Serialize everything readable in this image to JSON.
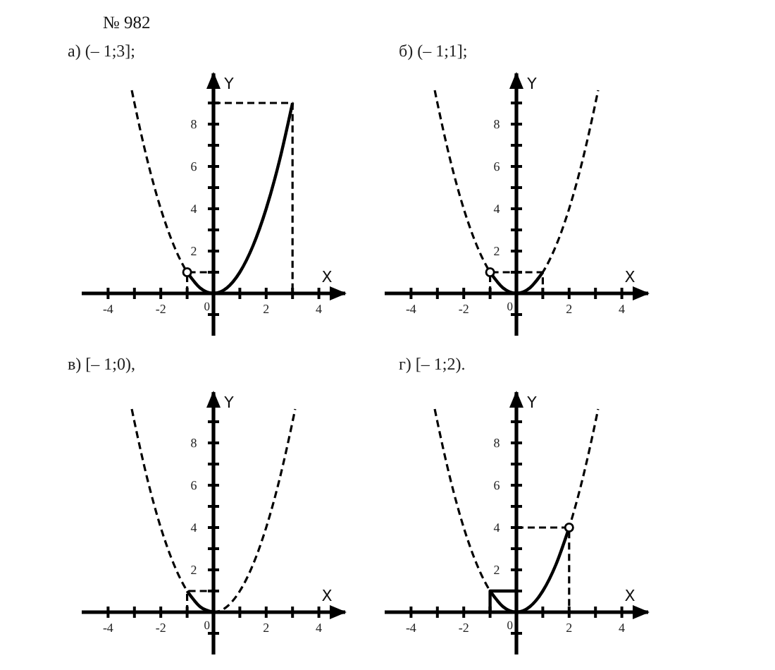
{
  "chart_data": [
    {
      "type": "line",
      "title": "а) (– 1;3];",
      "annotations": [
        "№ 982"
      ],
      "xlabel": "X",
      "ylabel": "Y",
      "xlim": [
        -5,
        5
      ],
      "ylim": [
        -2,
        10.4
      ],
      "xticks": [
        -4,
        {
          "value": -3,
          "label": null
        },
        -2,
        {
          "value": -1,
          "label": null
        },
        0,
        {
          "value": 1,
          "label": null
        },
        2,
        {
          "value": 3,
          "label": null
        },
        4
      ],
      "yticks": [
        {
          "value": -1,
          "label": null
        },
        {
          "value": 1,
          "label": null
        },
        2,
        {
          "value": 3,
          "label": null
        },
        4,
        {
          "value": 5,
          "label": null
        },
        6,
        {
          "value": 7,
          "label": null
        },
        8,
        {
          "value": 9,
          "label": null
        }
      ],
      "series": [
        {
          "color": "#000000",
          "line_style": "dashed",
          "x": [
            -3.1,
            -3,
            -2.5,
            -2,
            -1.5,
            -1,
            -0.5,
            0,
            0.5,
            1,
            1.5,
            2,
            2.5,
            3
          ],
          "values": [
            9.6,
            9,
            6.25,
            4,
            2.25,
            1,
            0.25,
            0,
            0.25,
            1,
            2.25,
            4,
            6.25,
            9
          ]
        },
        {
          "color": "#000000",
          "line_style": "solid",
          "x": [
            -1,
            -0.5,
            0,
            0.5,
            1,
            1.5,
            2,
            2.5,
            3
          ],
          "values": [
            1,
            0.25,
            0,
            0.25,
            1,
            2.25,
            4,
            6.25,
            9
          ]
        },
        {
          "color": "#000000",
          "line_style": "dashed",
          "x": [
            -1,
            -1,
            0
          ],
          "values": [
            0,
            1,
            1
          ]
        },
        {
          "color": "#000000",
          "line_style": "dashed",
          "x": [
            0,
            3,
            3
          ],
          "values": [
            9,
            9,
            0
          ]
        },
        {
          "type": "scatter",
          "marker": "circle",
          "color": "#000000",
          "x": [
            -1
          ],
          "values": [
            1
          ]
        }
      ]
    },
    {
      "type": "line",
      "title": "б) (– 1;1];",
      "xlabel": "X",
      "ylabel": "Y",
      "xlim": [
        -5,
        5
      ],
      "ylim": [
        -2,
        10.4
      ],
      "xticks": [
        -4,
        {
          "value": -3,
          "label": null
        },
        -2,
        {
          "value": -1,
          "label": null
        },
        0,
        {
          "value": 1,
          "label": null
        },
        2,
        {
          "value": 3,
          "label": null
        },
        4
      ],
      "yticks": [
        {
          "value": -1,
          "label": null
        },
        {
          "value": 1,
          "label": null
        },
        2,
        {
          "value": 3,
          "label": null
        },
        4,
        {
          "value": 5,
          "label": null
        },
        6,
        {
          "value": 7,
          "label": null
        },
        8,
        {
          "value": 9,
          "label": null
        }
      ],
      "series": [
        {
          "color": "#000000",
          "line_style": "dashed",
          "x": [
            -3.1,
            -3,
            -2.5,
            -2,
            -1.5,
            -1,
            -0.5,
            0,
            0.5,
            1,
            1.5,
            2,
            2.5,
            3,
            3.1
          ],
          "values": [
            9.6,
            9,
            6.25,
            4,
            2.25,
            1,
            0.25,
            0,
            0.25,
            1,
            2.25,
            4,
            6.25,
            9,
            9.6
          ]
        },
        {
          "color": "#000000",
          "line_style": "solid",
          "x": [
            -1,
            -0.5,
            0,
            0.5,
            1
          ],
          "values": [
            1,
            0.25,
            0,
            0.25,
            1
          ]
        },
        {
          "color": "#000000",
          "line_style": "dashed",
          "x": [
            -1,
            -1,
            1,
            1
          ],
          "values": [
            0,
            1,
            1,
            0
          ]
        },
        {
          "type": "scatter",
          "marker": "circle",
          "color": "#000000",
          "x": [
            -1
          ],
          "values": [
            1
          ]
        }
      ]
    },
    {
      "type": "line",
      "title": "в) [– 1;0),",
      "xlabel": "X",
      "ylabel": "Y",
      "xlim": [
        -5,
        5
      ],
      "ylim": [
        -2,
        10.4
      ],
      "xticks": [
        -4,
        {
          "value": -3,
          "label": null
        },
        -2,
        {
          "value": -1,
          "label": null
        },
        0,
        {
          "value": 1,
          "label": null
        },
        2,
        {
          "value": 3,
          "label": null
        },
        4
      ],
      "yticks": [
        {
          "value": -1,
          "label": null
        },
        {
          "value": 1,
          "label": null
        },
        2,
        {
          "value": 3,
          "label": null
        },
        4,
        {
          "value": 5,
          "label": null
        },
        6,
        {
          "value": 7,
          "label": null
        },
        8,
        {
          "value": 9,
          "label": null
        }
      ],
      "series": [
        {
          "color": "#000000",
          "line_style": "dashed",
          "x": [
            -3.1,
            -3,
            -2.5,
            -2,
            -1.5,
            -1,
            -0.5,
            0,
            0.5,
            1,
            1.5,
            2,
            2.5,
            3,
            3.1
          ],
          "values": [
            9.6,
            9,
            6.25,
            4,
            2.25,
            1,
            0.25,
            0,
            0.25,
            1,
            2.25,
            4,
            6.25,
            9,
            9.6
          ]
        },
        {
          "color": "#000000",
          "line_style": "solid",
          "x": [
            -1,
            -0.5,
            0
          ],
          "values": [
            1,
            0.25,
            0
          ]
        },
        {
          "color": "#000000",
          "line_style": "dashed",
          "x": [
            -1,
            -1,
            0
          ],
          "values": [
            0,
            1,
            1
          ]
        }
      ]
    },
    {
      "type": "line",
      "title": "г) [– 1;2).",
      "xlabel": "X",
      "ylabel": "Y",
      "xlim": [
        -5,
        5
      ],
      "ylim": [
        -2,
        10.4
      ],
      "xticks": [
        -4,
        {
          "value": -3,
          "label": null
        },
        -2,
        {
          "value": -1,
          "label": null
        },
        0,
        {
          "value": 1,
          "label": null
        },
        2,
        {
          "value": 3,
          "label": null
        },
        4
      ],
      "yticks": [
        {
          "value": -1,
          "label": null
        },
        {
          "value": 1,
          "label": null
        },
        2,
        {
          "value": 3,
          "label": null
        },
        4,
        {
          "value": 5,
          "label": null
        },
        6,
        {
          "value": 7,
          "label": null
        },
        8,
        {
          "value": 9,
          "label": null
        }
      ],
      "series": [
        {
          "color": "#000000",
          "line_style": "dashed",
          "x": [
            -3.1,
            -3,
            -2.5,
            -2,
            -1.5,
            -1,
            -0.5,
            0,
            0.5,
            1,
            1.5,
            2,
            2.5,
            3,
            3.1
          ],
          "values": [
            9.6,
            9,
            6.25,
            4,
            2.25,
            1,
            0.25,
            0,
            0.25,
            1,
            2.25,
            4,
            6.25,
            9,
            9.6
          ]
        },
        {
          "color": "#000000",
          "line_style": "solid",
          "x": [
            -1,
            -0.5,
            0,
            0.5,
            1,
            1.5,
            2
          ],
          "values": [
            1,
            0.25,
            0,
            0.25,
            1,
            2.25,
            4
          ]
        },
        {
          "color": "#000000",
          "line_style": "solid",
          "x": [
            -1,
            -1,
            0
          ],
          "values": [
            0,
            1,
            1
          ]
        },
        {
          "color": "#000000",
          "line_style": "dashed",
          "x": [
            0,
            2,
            2
          ],
          "values": [
            4,
            4,
            0
          ]
        },
        {
          "type": "scatter",
          "marker": "circle",
          "color": "#000000",
          "x": [
            2
          ],
          "values": [
            4
          ]
        }
      ]
    }
  ]
}
